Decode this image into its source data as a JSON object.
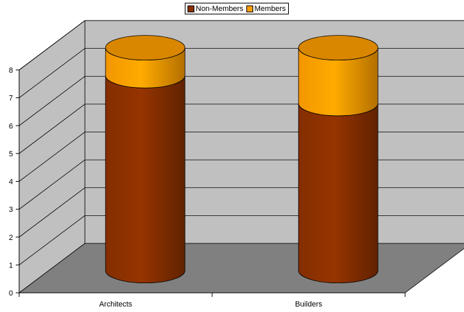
{
  "chart_data": {
    "type": "bar",
    "stacked": true,
    "style": "3d-cylinder",
    "title": "",
    "xlabel": "",
    "ylabel": "",
    "categories": [
      "Architects",
      "Builders"
    ],
    "series": [
      {
        "name": "Non-Members",
        "values": [
          7,
          6
        ]
      },
      {
        "name": "Members",
        "values": [
          1,
          2
        ]
      }
    ],
    "ylim": [
      0,
      8
    ],
    "yticks": [
      0,
      1,
      2,
      3,
      4,
      5,
      6,
      7,
      8
    ],
    "grid": true,
    "legend_position": "top"
  },
  "colors": {
    "Non-Members": "#8b3000",
    "Members": "#ff9e00",
    "wall": "#c0c0c0",
    "floor": "#808080"
  }
}
